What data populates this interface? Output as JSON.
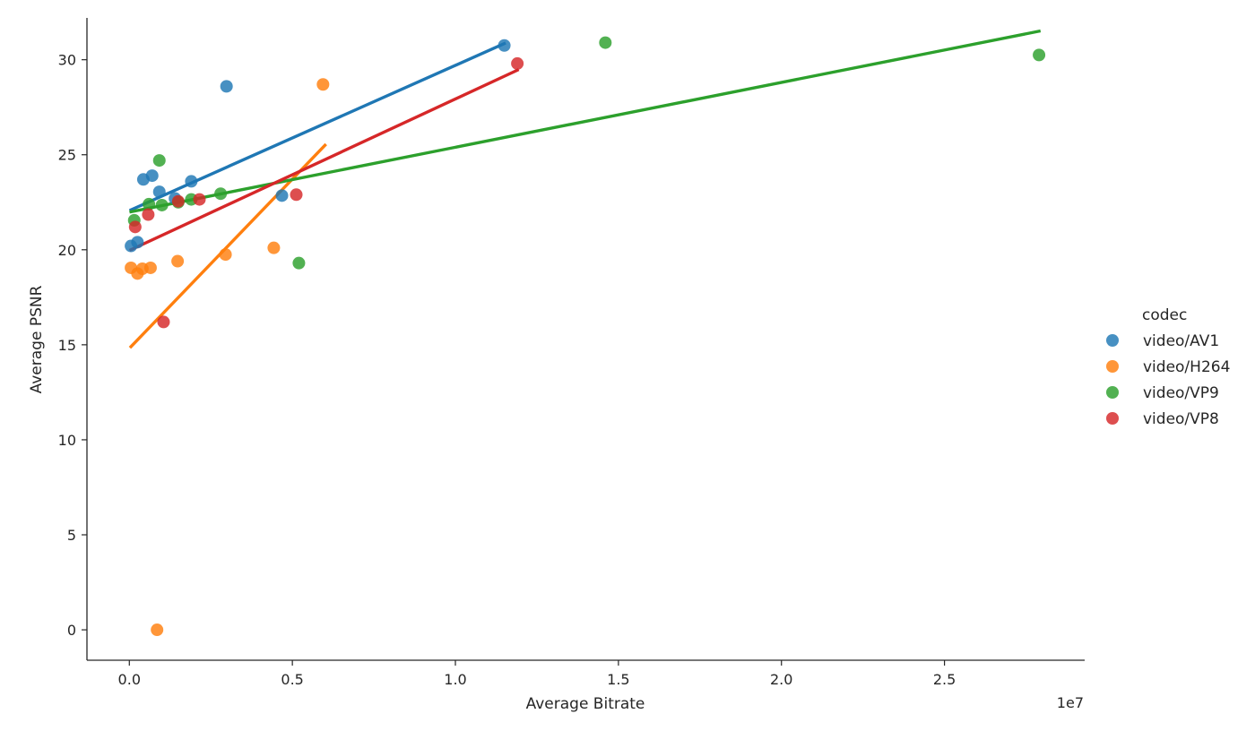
{
  "chart_data": {
    "type": "scatter",
    "xlabel": "Average Bitrate",
    "ylabel": "Average PSNR",
    "x_offset_label": "1e7",
    "x_scale": 10000000,
    "xlim": [
      -0.13,
      2.93
    ],
    "ylim": [
      -1.6,
      32.2
    ],
    "x_ticks": [
      0.0,
      0.5,
      1.0,
      1.5,
      2.0,
      2.5
    ],
    "x_tick_labels": [
      "0.0",
      "0.5",
      "1.0",
      "1.5",
      "2.0",
      "2.5"
    ],
    "y_ticks": [
      0,
      5,
      10,
      15,
      20,
      25,
      30
    ],
    "y_tick_labels": [
      "0",
      "5",
      "10",
      "15",
      "20",
      "25",
      "30"
    ],
    "grid": false,
    "legend": {
      "title": "codec",
      "placement": "right"
    },
    "series": [
      {
        "name": "video/AV1",
        "color": "#1f77b4",
        "points": [
          [
            0.005,
            20.2
          ],
          [
            0.025,
            20.4
          ],
          [
            0.043,
            23.7
          ],
          [
            0.07,
            23.9
          ],
          [
            0.092,
            23.05
          ],
          [
            0.14,
            22.7
          ],
          [
            0.19,
            23.6
          ],
          [
            0.298,
            28.6
          ],
          [
            0.468,
            22.85
          ],
          [
            1.15,
            30.75
          ]
        ],
        "fit": [
          [
            0.005,
            22.1
          ],
          [
            1.15,
            30.85
          ]
        ]
      },
      {
        "name": "video/H264",
        "color": "#ff7f0e",
        "points": [
          [
            0.005,
            19.05
          ],
          [
            0.025,
            18.75
          ],
          [
            0.04,
            19.0
          ],
          [
            0.065,
            19.05
          ],
          [
            0.085,
            0.0
          ],
          [
            0.148,
            19.4
          ],
          [
            0.295,
            19.75
          ],
          [
            0.443,
            20.1
          ],
          [
            0.594,
            28.7
          ]
        ],
        "fit": [
          [
            0.005,
            14.9
          ],
          [
            0.6,
            25.5
          ]
        ]
      },
      {
        "name": "video/VP9",
        "color": "#2ca02c",
        "points": [
          [
            0.015,
            21.55
          ],
          [
            0.06,
            22.4
          ],
          [
            0.092,
            24.7
          ],
          [
            0.1,
            22.35
          ],
          [
            0.15,
            22.5
          ],
          [
            0.19,
            22.65
          ],
          [
            0.28,
            22.95
          ],
          [
            0.52,
            19.3
          ],
          [
            1.46,
            30.9
          ],
          [
            2.79,
            30.25
          ]
        ],
        "fit": [
          [
            0.005,
            22.0
          ],
          [
            2.79,
            31.5
          ]
        ]
      },
      {
        "name": "video/VP8",
        "color": "#d62728",
        "points": [
          [
            0.018,
            21.2
          ],
          [
            0.058,
            21.85
          ],
          [
            0.105,
            16.2
          ],
          [
            0.15,
            22.55
          ],
          [
            0.215,
            22.65
          ],
          [
            0.512,
            22.9
          ],
          [
            1.19,
            29.8
          ]
        ],
        "fit": [
          [
            0.005,
            20.0
          ],
          [
            1.19,
            29.45
          ]
        ]
      }
    ]
  }
}
